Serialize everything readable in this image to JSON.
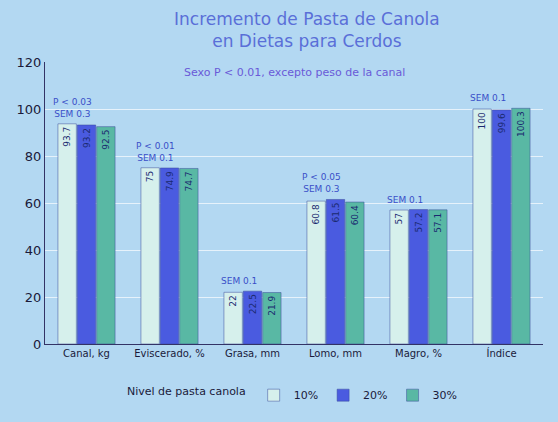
{
  "chart_data": {
    "type": "bar",
    "title": "Incremento de Pasta de Canola\nen Dietas para Cerdos",
    "subtitle": "Sexo P < 0.01, excepto peso de la canal",
    "categories": [
      "Canal, kg",
      "Eviscerado, %",
      "Grasa, mm",
      "Lomo, mm",
      "Magro, %",
      "Índice"
    ],
    "series": [
      {
        "name": "10%",
        "color": "#d6f0ec",
        "values": [
          93.7,
          75.0,
          22.0,
          60.8,
          57.0,
          100.0
        ]
      },
      {
        "name": "20%",
        "color": "#4a5be0",
        "values": [
          93.2,
          74.9,
          22.5,
          61.5,
          57.2,
          99.6
        ]
      },
      {
        "name": "30%",
        "color": "#59b8a4",
        "values": [
          92.5,
          74.7,
          21.9,
          60.4,
          57.1,
          100.3
        ]
      }
    ],
    "legend_title": "Nivel de pasta canola",
    "annotations": [
      {
        "category": "Canal, kg",
        "text": "P < 0.03\nSEM 0.3"
      },
      {
        "category": "Eviscerado, %",
        "text": "P < 0.01\nSEM 0.1"
      },
      {
        "category": "Grasa, mm",
        "text": "SEM 0.1"
      },
      {
        "category": "Lomo, mm",
        "text": "P < 0.05\nSEM 0.3"
      },
      {
        "category": "Magro, %",
        "text": "SEM 0.1"
      },
      {
        "category": "Índice",
        "text": "SEM 0.1"
      }
    ],
    "ylim": [
      0,
      120
    ],
    "yticks": [
      0,
      20,
      40,
      60,
      80,
      100,
      120
    ],
    "grid": true,
    "legend": "bottom",
    "data_labels": true
  }
}
